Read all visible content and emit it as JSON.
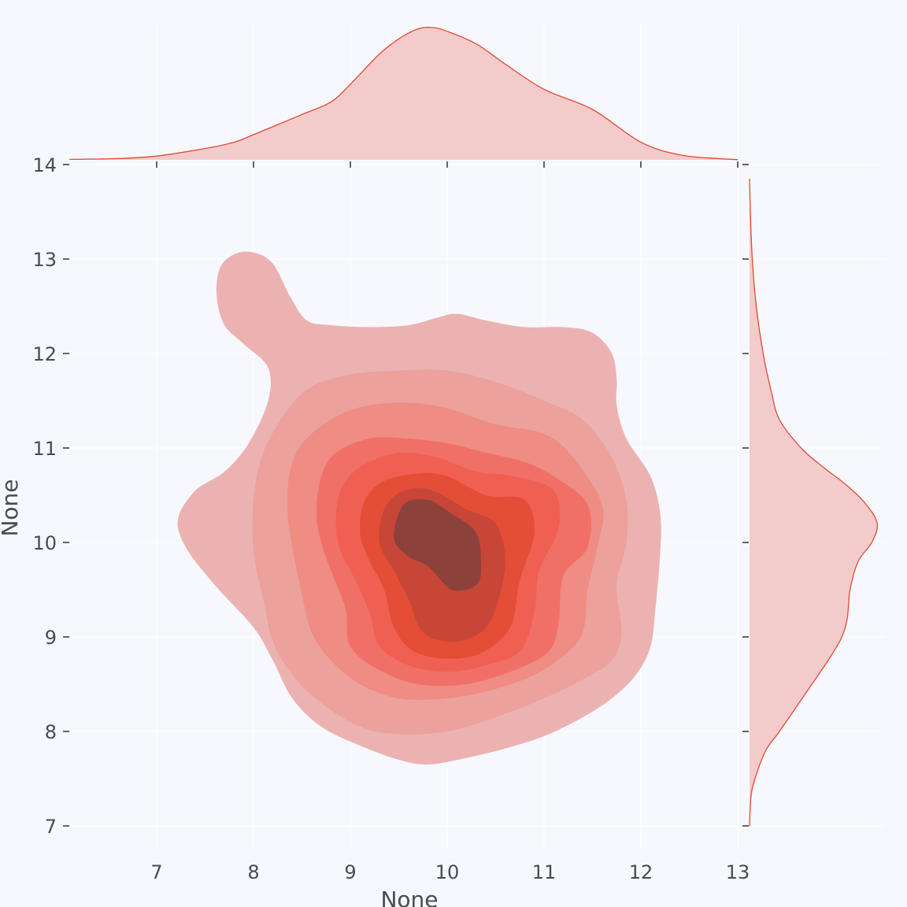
{
  "chart_data": {
    "type": "kde-joint",
    "kind": "bivariate KDE with marginal density curves",
    "xlabel": "None",
    "ylabel": "None",
    "xlim": [
      6.1,
      13.1
    ],
    "ylim": [
      6.75,
      14.0
    ],
    "x_ticks": [
      "7",
      "8",
      "9",
      "10",
      "11",
      "12",
      "13"
    ],
    "y_ticks": [
      "7",
      "8",
      "9",
      "10",
      "11",
      "12",
      "13",
      "14"
    ],
    "grid": true,
    "fill_color": "#e24a33",
    "joint_levels": [
      {
        "level": 1,
        "color": "#ecb2b1",
        "points": [
          [
            7.62,
            12.6
          ],
          [
            7.65,
            12.9
          ],
          [
            7.8,
            13.05
          ],
          [
            8.0,
            13.07
          ],
          [
            8.2,
            12.95
          ],
          [
            8.38,
            12.6
          ],
          [
            8.55,
            12.35
          ],
          [
            8.8,
            12.3
          ],
          [
            9.2,
            12.28
          ],
          [
            9.6,
            12.3
          ],
          [
            9.9,
            12.38
          ],
          [
            10.1,
            12.42
          ],
          [
            10.4,
            12.35
          ],
          [
            10.8,
            12.28
          ],
          [
            11.2,
            12.28
          ],
          [
            11.5,
            12.22
          ],
          [
            11.7,
            12.0
          ],
          [
            11.75,
            11.72
          ],
          [
            11.75,
            11.45
          ],
          [
            11.85,
            11.1
          ],
          [
            12.1,
            10.7
          ],
          [
            12.2,
            10.3
          ],
          [
            12.2,
            9.9
          ],
          [
            12.15,
            9.3
          ],
          [
            12.1,
            8.9
          ],
          [
            11.95,
            8.6
          ],
          [
            11.7,
            8.35
          ],
          [
            11.4,
            8.15
          ],
          [
            11.0,
            7.95
          ],
          [
            10.6,
            7.82
          ],
          [
            10.2,
            7.72
          ],
          [
            9.8,
            7.65
          ],
          [
            9.5,
            7.7
          ],
          [
            9.1,
            7.85
          ],
          [
            8.7,
            8.05
          ],
          [
            8.4,
            8.35
          ],
          [
            8.2,
            8.75
          ],
          [
            8.0,
            9.1
          ],
          [
            7.6,
            9.55
          ],
          [
            7.3,
            9.95
          ],
          [
            7.22,
            10.25
          ],
          [
            7.4,
            10.55
          ],
          [
            7.7,
            10.75
          ],
          [
            7.95,
            11.05
          ],
          [
            8.15,
            11.5
          ],
          [
            8.15,
            11.85
          ],
          [
            7.9,
            12.1
          ],
          [
            7.7,
            12.3
          ]
        ]
      },
      {
        "level": 2,
        "color": "#eca19c",
        "points": [
          [
            8.0,
            10.45
          ],
          [
            8.1,
            10.95
          ],
          [
            8.35,
            11.4
          ],
          [
            8.6,
            11.65
          ],
          [
            9.0,
            11.78
          ],
          [
            9.5,
            11.82
          ],
          [
            10.0,
            11.82
          ],
          [
            10.5,
            11.7
          ],
          [
            11.0,
            11.5
          ],
          [
            11.4,
            11.3
          ],
          [
            11.7,
            10.9
          ],
          [
            11.85,
            10.45
          ],
          [
            11.85,
            10.0
          ],
          [
            11.75,
            9.55
          ],
          [
            11.8,
            9.05
          ],
          [
            11.7,
            8.75
          ],
          [
            11.4,
            8.55
          ],
          [
            11.0,
            8.35
          ],
          [
            10.5,
            8.15
          ],
          [
            10.0,
            8.0
          ],
          [
            9.5,
            7.97
          ],
          [
            9.1,
            8.05
          ],
          [
            8.7,
            8.3
          ],
          [
            8.4,
            8.6
          ],
          [
            8.2,
            8.95
          ],
          [
            8.1,
            9.4
          ],
          [
            8.0,
            9.9
          ]
        ]
      },
      {
        "level": 3,
        "color": "#ef8c83",
        "points": [
          [
            8.35,
            10.4
          ],
          [
            8.4,
            10.85
          ],
          [
            8.6,
            11.15
          ],
          [
            9.0,
            11.4
          ],
          [
            9.5,
            11.48
          ],
          [
            10.0,
            11.42
          ],
          [
            10.5,
            11.25
          ],
          [
            11.0,
            11.15
          ],
          [
            11.3,
            10.9
          ],
          [
            11.6,
            10.4
          ],
          [
            11.55,
            9.95
          ],
          [
            11.45,
            9.5
          ],
          [
            11.4,
            9.05
          ],
          [
            11.2,
            8.8
          ],
          [
            10.9,
            8.6
          ],
          [
            10.5,
            8.45
          ],
          [
            10.0,
            8.35
          ],
          [
            9.5,
            8.35
          ],
          [
            9.1,
            8.5
          ],
          [
            8.8,
            8.75
          ],
          [
            8.6,
            9.05
          ],
          [
            8.5,
            9.45
          ],
          [
            8.4,
            9.95
          ]
        ]
      },
      {
        "level": 4,
        "color": "#f07067",
        "points": [
          [
            8.65,
            10.3
          ],
          [
            8.7,
            10.7
          ],
          [
            8.85,
            10.95
          ],
          [
            9.2,
            11.1
          ],
          [
            9.6,
            11.1
          ],
          [
            10.0,
            11.05
          ],
          [
            10.4,
            10.95
          ],
          [
            10.8,
            10.85
          ],
          [
            11.1,
            10.7
          ],
          [
            11.45,
            10.4
          ],
          [
            11.45,
            9.95
          ],
          [
            11.2,
            9.65
          ],
          [
            11.15,
            9.15
          ],
          [
            11.05,
            8.85
          ],
          [
            10.7,
            8.65
          ],
          [
            10.2,
            8.5
          ],
          [
            9.7,
            8.5
          ],
          [
            9.3,
            8.65
          ],
          [
            9.0,
            8.9
          ],
          [
            8.95,
            9.3
          ],
          [
            8.8,
            9.7
          ],
          [
            8.7,
            10.0
          ]
        ]
      },
      {
        "level": 5,
        "color": "#f06052",
        "points": [
          [
            8.85,
            10.2
          ],
          [
            8.9,
            10.55
          ],
          [
            9.1,
            10.8
          ],
          [
            9.5,
            10.95
          ],
          [
            9.9,
            10.9
          ],
          [
            10.3,
            10.75
          ],
          [
            10.7,
            10.7
          ],
          [
            11.1,
            10.55
          ],
          [
            11.15,
            10.15
          ],
          [
            10.95,
            9.7
          ],
          [
            10.9,
            9.25
          ],
          [
            10.75,
            8.85
          ],
          [
            10.4,
            8.7
          ],
          [
            10.0,
            8.63
          ],
          [
            9.6,
            8.7
          ],
          [
            9.3,
            8.9
          ],
          [
            9.2,
            9.25
          ],
          [
            9.05,
            9.6
          ],
          [
            8.9,
            9.9
          ]
        ]
      },
      {
        "level": 6,
        "color": "#e44d36",
        "points": [
          [
            9.1,
            10.1
          ],
          [
            9.15,
            10.45
          ],
          [
            9.35,
            10.65
          ],
          [
            9.7,
            10.73
          ],
          [
            10.0,
            10.7
          ],
          [
            10.4,
            10.5
          ],
          [
            10.8,
            10.45
          ],
          [
            10.9,
            10.1
          ],
          [
            10.75,
            9.6
          ],
          [
            10.65,
            9.1
          ],
          [
            10.35,
            8.83
          ],
          [
            10.0,
            8.77
          ],
          [
            9.65,
            8.85
          ],
          [
            9.45,
            9.1
          ],
          [
            9.35,
            9.5
          ],
          [
            9.2,
            9.8
          ]
        ]
      },
      {
        "level": 7,
        "color": "#c74638",
        "points": [
          [
            9.3,
            10.0
          ],
          [
            9.35,
            10.35
          ],
          [
            9.55,
            10.55
          ],
          [
            9.85,
            10.55
          ],
          [
            10.2,
            10.35
          ],
          [
            10.5,
            10.2
          ],
          [
            10.6,
            9.8
          ],
          [
            10.5,
            9.3
          ],
          [
            10.35,
            9.05
          ],
          [
            10.05,
            8.95
          ],
          [
            9.75,
            9.05
          ],
          [
            9.6,
            9.4
          ],
          [
            9.45,
            9.7
          ]
        ]
      },
      {
        "level": 8,
        "color": "#8c413b",
        "points": [
          [
            9.45,
            10.05
          ],
          [
            9.55,
            10.4
          ],
          [
            9.8,
            10.45
          ],
          [
            10.05,
            10.3
          ],
          [
            10.3,
            10.1
          ],
          [
            10.35,
            9.75
          ],
          [
            10.3,
            9.55
          ],
          [
            10.05,
            9.5
          ],
          [
            9.8,
            9.75
          ],
          [
            9.6,
            9.85
          ]
        ]
      }
    ],
    "x_marginal": [
      [
        6.1,
        0.002
      ],
      [
        6.6,
        0.005
      ],
      [
        7.0,
        0.015
      ],
      [
        7.5,
        0.045
      ],
      [
        7.8,
        0.07
      ],
      [
        8.0,
        0.1
      ],
      [
        8.5,
        0.18
      ],
      [
        8.8,
        0.23
      ],
      [
        9.0,
        0.3
      ],
      [
        9.3,
        0.42
      ],
      [
        9.5,
        0.48
      ],
      [
        9.7,
        0.52
      ],
      [
        9.85,
        0.525
      ],
      [
        10.0,
        0.51
      ],
      [
        10.3,
        0.46
      ],
      [
        10.6,
        0.38
      ],
      [
        11.0,
        0.28
      ],
      [
        11.5,
        0.2
      ],
      [
        12.0,
        0.07
      ],
      [
        12.4,
        0.02
      ],
      [
        12.8,
        0.005
      ],
      [
        13.0,
        0.001
      ]
    ],
    "y_marginal": [
      [
        7.0,
        0.0
      ],
      [
        7.3,
        0.005
      ],
      [
        7.5,
        0.02
      ],
      [
        7.8,
        0.06
      ],
      [
        8.0,
        0.11
      ],
      [
        8.5,
        0.23
      ],
      [
        8.8,
        0.3
      ],
      [
        9.0,
        0.34
      ],
      [
        9.2,
        0.36
      ],
      [
        9.5,
        0.37
      ],
      [
        9.8,
        0.4
      ],
      [
        10.0,
        0.45
      ],
      [
        10.2,
        0.47
      ],
      [
        10.4,
        0.43
      ],
      [
        10.6,
        0.36
      ],
      [
        10.8,
        0.27
      ],
      [
        11.0,
        0.19
      ],
      [
        11.3,
        0.11
      ],
      [
        11.6,
        0.08
      ],
      [
        12.0,
        0.05
      ],
      [
        12.5,
        0.025
      ],
      [
        13.0,
        0.01
      ],
      [
        13.5,
        0.003
      ],
      [
        13.85,
        0.0
      ]
    ]
  }
}
